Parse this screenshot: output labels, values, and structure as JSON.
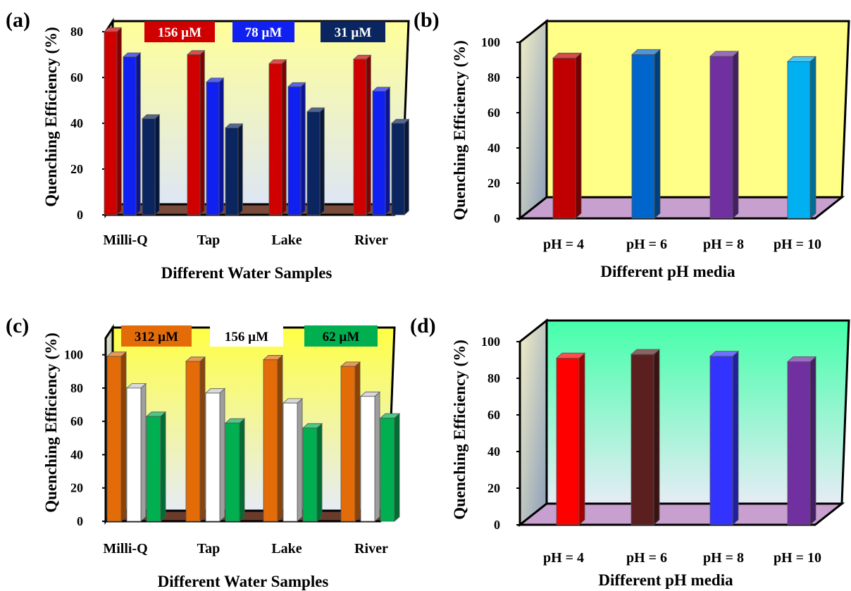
{
  "chart_data": [
    {
      "panel": "(a)",
      "type": "bar",
      "style": "3d-box",
      "categories": [
        "Milli-Q",
        "Tap",
        "Lake",
        "River"
      ],
      "series": [
        {
          "name": "156 µM",
          "color": "#d00000",
          "values": [
            80,
            70,
            66,
            68
          ]
        },
        {
          "name": "78 µM",
          "color": "#1020f0",
          "values": [
            69,
            58,
            56,
            54
          ]
        },
        {
          "name": "31 µM",
          "color": "#0a2560",
          "values": [
            42,
            38,
            45,
            40
          ]
        }
      ],
      "xlabel": "Different Water Samples",
      "ylabel": "Quenching Efficiency (%)",
      "ylim": [
        0,
        80
      ],
      "yticks": [
        "0",
        "20",
        "40",
        "60",
        "80"
      ],
      "legend": "top",
      "wall_gradient": [
        "#ffff99",
        "#dde6f5"
      ],
      "floor_color": "#7a4a3a"
    },
    {
      "panel": "(b)",
      "type": "bar",
      "style": "3d-box",
      "categories": [
        "pH = 4",
        "pH = 6",
        "pH = 8",
        "pH = 10"
      ],
      "bar_colors": [
        "#c00000",
        "#0066cc",
        "#7030a0",
        "#00b0f0"
      ],
      "values": [
        91,
        93,
        92,
        89
      ],
      "xlabel": "Different pH media",
      "ylabel": "Quenching Efficiency (%)",
      "ylim": [
        0,
        100
      ],
      "yticks": [
        "0",
        "20",
        "40",
        "60",
        "80",
        "100"
      ],
      "wall_gradient": [
        "#ffff88",
        "#ffff88"
      ],
      "floor_color": "#c8a0d0"
    },
    {
      "panel": "(c)",
      "type": "bar",
      "style": "3d-box",
      "categories": [
        "Milli-Q",
        "Tap",
        "Lake",
        "River"
      ],
      "series": [
        {
          "name": "312 µM",
          "color": "#e36c09",
          "values": [
            99,
            96,
            97,
            93
          ]
        },
        {
          "name": "156 µM",
          "color": "#ffffff",
          "values": [
            80,
            77,
            71,
            75
          ]
        },
        {
          "name": "62 µM",
          "color": "#00b050",
          "values": [
            63,
            59,
            56,
            62
          ]
        }
      ],
      "xlabel": "Different Water Samples",
      "ylabel": "Quenching Efficiency (%)",
      "ylim": [
        0,
        110
      ],
      "yticks": [
        "0",
        "20",
        "40",
        "60",
        "80",
        "100"
      ],
      "legend": "top",
      "wall_gradient": [
        "#ffff44",
        "#e6ecf5"
      ],
      "floor_color": "#6a3a2a"
    },
    {
      "panel": "(d)",
      "type": "bar",
      "style": "3d-box",
      "categories": [
        "pH = 4",
        "pH = 6",
        "pH = 8",
        "pH = 10"
      ],
      "bar_colors": [
        "#ff0000",
        "#5c1f1f",
        "#3333ff",
        "#7030a0"
      ],
      "values": [
        91,
        93,
        92,
        89
      ],
      "xlabel": "Different pH media",
      "ylabel": "Quenching Efficiency (%)",
      "ylim": [
        0,
        100
      ],
      "yticks": [
        "0",
        "20",
        "40",
        "60",
        "80",
        "100"
      ],
      "wall_gradient": [
        "#44ffaa",
        "#e6ecf5"
      ],
      "floor_color": "#c8a0d0"
    }
  ]
}
